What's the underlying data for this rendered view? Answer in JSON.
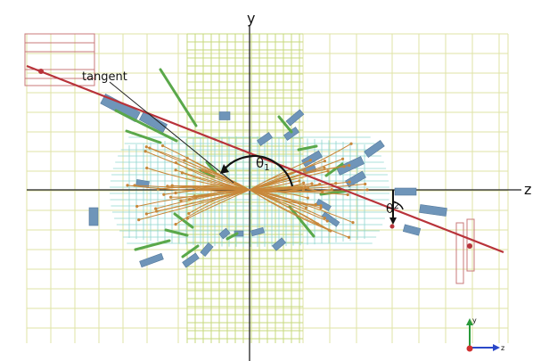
{
  "labels": {
    "y_axis": "y",
    "z_axis": "z",
    "tangent": "tangent",
    "theta1_base": "θ",
    "theta1_sub": "1",
    "theta2_base": "θ",
    "theta2_sub": "2"
  },
  "triad": {
    "y": "y",
    "z": "z"
  },
  "colors": {
    "background": "#ffffff",
    "outer_grid": "#dfe3a6",
    "inner_grid": "#c7d97d",
    "tracker_mesh": "#8fd6cf",
    "track": "#c8873a",
    "hit_module": "#6f95b9",
    "jet_segment": "#5aa84a",
    "reference_line": "#b8333a",
    "axes": "#222222"
  }
}
